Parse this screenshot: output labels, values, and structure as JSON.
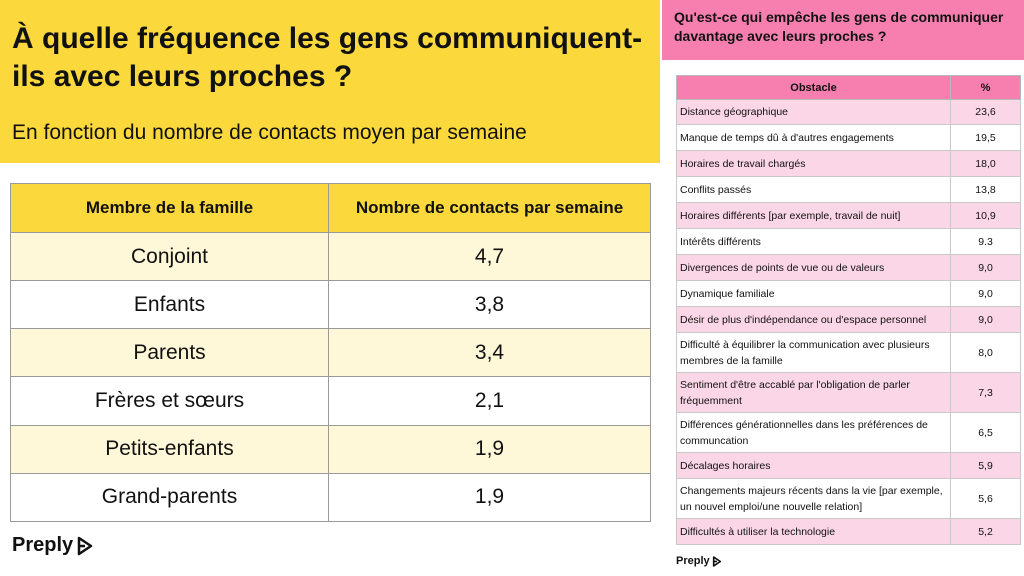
{
  "left": {
    "title": "À quelle fréquence les gens communiquent-ils avec leurs proches ?",
    "subtitle": "En fonction du nombre de contacts moyen par semaine",
    "headers": [
      "Membre de la famille",
      "Nombre de contacts par semaine"
    ],
    "rows": [
      {
        "member": "Conjoint",
        "contacts": "4,7"
      },
      {
        "member": "Enfants",
        "contacts": "3,8"
      },
      {
        "member": "Parents",
        "contacts": "3,4"
      },
      {
        "member": "Frères et sœurs",
        "contacts": "2,1"
      },
      {
        "member": "Petits-enfants",
        "contacts": "1,9"
      },
      {
        "member": "Grand-parents",
        "contacts": "1,9"
      }
    ],
    "brand": "Preply"
  },
  "right": {
    "title": "Qu'est-ce qui empêche les gens de communiquer davantage avec leurs proches ?",
    "headers": [
      "Obstacle",
      "%"
    ],
    "rows": [
      {
        "obstacle": "Distance géographique",
        "pct": "23,6"
      },
      {
        "obstacle": "Manque de temps dû à d'autres engagements",
        "pct": "19,5"
      },
      {
        "obstacle": "Horaires de travail chargés",
        "pct": "18,0"
      },
      {
        "obstacle": "Conflits passés",
        "pct": "13,8"
      },
      {
        "obstacle": "Horaires différents [par exemple, travail de nuit]",
        "pct": "10,9"
      },
      {
        "obstacle": "Intérêts différents",
        "pct": "9.3"
      },
      {
        "obstacle": "Divergences de points de vue ou de valeurs",
        "pct": "9,0"
      },
      {
        "obstacle": "Dynamique familiale",
        "pct": "9,0"
      },
      {
        "obstacle": "Désir de plus d'indépendance ou d'espace personnel",
        "pct": "9,0"
      },
      {
        "obstacle": "Difficulté à équilibrer la communication avec plusieurs membres de la famille",
        "pct": "8,0"
      },
      {
        "obstacle": "Sentiment d'être accablé par l'obligation de parler fréquemment",
        "pct": "7,3"
      },
      {
        "obstacle": "Différences générationnelles dans les préférences de communcation",
        "pct": "6,5"
      },
      {
        "obstacle": "Décalages horaires",
        "pct": "5,9"
      },
      {
        "obstacle": "Changements majeurs récents dans la vie [par exemple, un nouvel emploi/une nouvelle relation]",
        "pct": "5,6"
      },
      {
        "obstacle": "Difficultés à utiliser la technologie",
        "pct": "5,2"
      }
    ],
    "brand": "Preply"
  },
  "colors": {
    "yellow": "#fbd93c",
    "light_yellow": "#fef7d8",
    "pink": "#f77fb0",
    "light_pink": "#fbd6e6"
  },
  "icons": [
    "preply-logo-icon"
  ]
}
